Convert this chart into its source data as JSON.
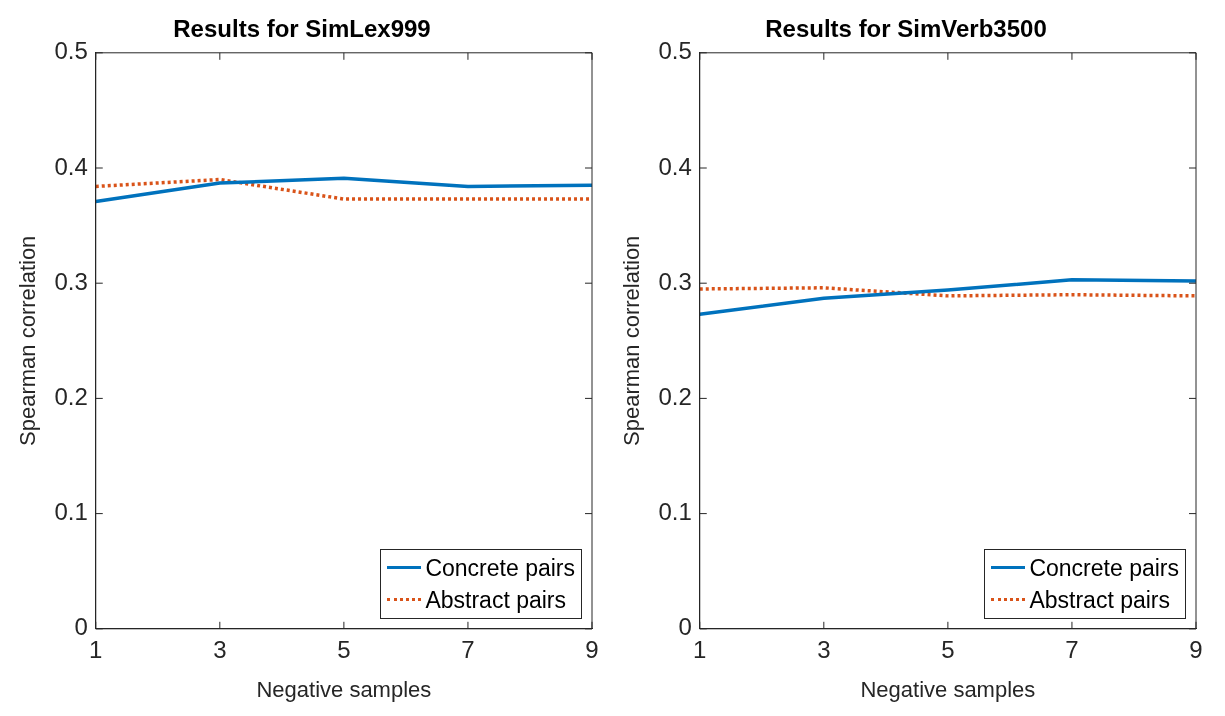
{
  "chart_data": [
    {
      "type": "line",
      "title": "Results for SimLex999",
      "xlabel": "Negative samples",
      "ylabel": "Spearman correlation",
      "x": [
        1,
        3,
        5,
        7,
        9
      ],
      "xlim": [
        1,
        9
      ],
      "xticks": [
        1,
        3,
        5,
        7,
        9
      ],
      "ylim": [
        0,
        0.5
      ],
      "yticks": [
        0,
        0.1,
        0.2,
        0.3,
        0.4,
        0.5
      ],
      "grid": false,
      "legend": "bottom right",
      "marker": "none",
      "series": [
        {
          "name": "Concrete pairs",
          "color": "#0072bd",
          "line_style": "solid",
          "values": [
            0.371,
            0.387,
            0.391,
            0.384,
            0.385
          ]
        },
        {
          "name": "Abstract pairs",
          "color": "#d95319",
          "line_style": "dotted",
          "values": [
            0.384,
            0.39,
            0.373,
            0.373,
            0.373
          ]
        }
      ]
    },
    {
      "type": "line",
      "title": "Results for SimVerb3500",
      "xlabel": "Negative samples",
      "ylabel": "Spearman correlation",
      "x": [
        1,
        3,
        5,
        7,
        9
      ],
      "xlim": [
        1,
        9
      ],
      "xticks": [
        1,
        3,
        5,
        7,
        9
      ],
      "ylim": [
        0,
        0.5
      ],
      "yticks": [
        0,
        0.1,
        0.2,
        0.3,
        0.4,
        0.5
      ],
      "grid": false,
      "legend": "bottom right",
      "marker": "none",
      "series": [
        {
          "name": "Concrete pairs",
          "color": "#0072bd",
          "line_style": "solid",
          "values": [
            0.273,
            0.287,
            0.294,
            0.303,
            0.302
          ]
        },
        {
          "name": "Abstract pairs",
          "color": "#d95319",
          "line_style": "dotted",
          "values": [
            0.295,
            0.296,
            0.289,
            0.29,
            0.289
          ]
        }
      ]
    }
  ]
}
